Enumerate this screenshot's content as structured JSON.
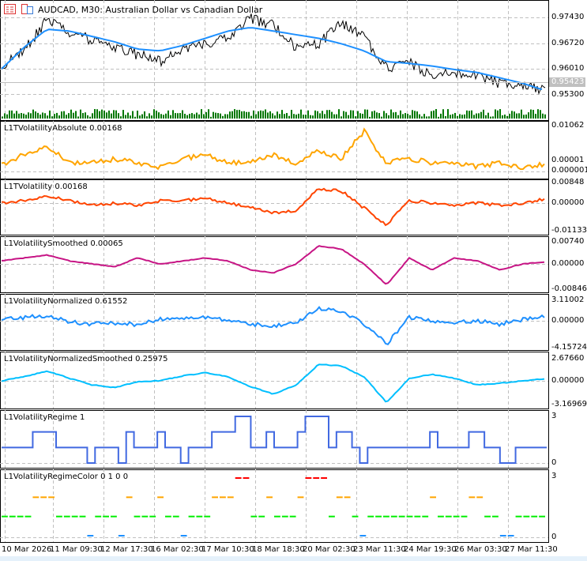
{
  "header": {
    "title": "AUDCAD, M30:  Australian Dollar vs Canadian Dollar",
    "icons": [
      "chart-list-icon",
      "templates-icon"
    ]
  },
  "colors": {
    "price": "#000000",
    "ma": "#1e90ff",
    "volume": "#007700",
    "abs": "#ffa500",
    "vol": "#ff4500",
    "smoothed": "#c71585",
    "normalized": "#1e90ff",
    "normSmoothed": "#00bfff",
    "regime": "#4169e1",
    "regimeColors": [
      "#1e90ff",
      "#00ee00",
      "#ffa500",
      "#ff0000"
    ],
    "grid": "#c0c0c0",
    "bidLabel": "#c0c0c0"
  },
  "main": {
    "axis": [
      "0.97430",
      "0.96720",
      "0.96010",
      "0.95300"
    ],
    "bid": "0.95423"
  },
  "panels": [
    {
      "label": "L1TVolatilityAbsolute 0.00168",
      "axis": [
        "0.01062",
        "0.00001",
        "0.000001"
      ]
    },
    {
      "label": "L1TVolatility 0.00168",
      "axis": [
        "0.00848",
        "0.00000",
        "-0.01133"
      ]
    },
    {
      "label": "L1VolatilitySmoothed 0.00065",
      "axis": [
        "0.00740",
        "0.00000",
        "-0.00846"
      ]
    },
    {
      "label": "L1VolatilityNormalized 0.61552",
      "axis": [
        "3.11002",
        "0.00000",
        "-4.15724"
      ]
    },
    {
      "label": "L1VolatilityNormalizedSmoothed 0.25975",
      "axis": [
        "2.67660",
        "0.00000",
        "-3.16969"
      ]
    },
    {
      "label": "L1VolatilityRegime 1",
      "axis": [
        "3",
        "0"
      ]
    },
    {
      "label": "L1VolatilityRegimeColor 0 1 0 0",
      "axis": [
        "3",
        "0"
      ]
    }
  ],
  "xaxis": [
    "10 Mar 2026",
    "11 Mar 09:30",
    "12 Mar 17:30",
    "16 Mar 02:30",
    "17 Mar 10:30",
    "18 Mar 18:30",
    "20 Mar 02:30",
    "23 Mar 11:30",
    "24 Mar 19:30",
    "26 Mar 03:30",
    "27 Mar 11:30"
  ],
  "chart_data": {
    "type": "line",
    "price": [
      0.9605,
      0.965,
      0.9735,
      0.97,
      0.968,
      0.966,
      0.964,
      0.962,
      0.965,
      0.967,
      0.969,
      0.974,
      0.972,
      0.966,
      0.967,
      0.973,
      0.969,
      0.96,
      0.962,
      0.958,
      0.959,
      0.958,
      0.956,
      0.955,
      0.9542
    ],
    "ma": [
      0.96,
      0.966,
      0.971,
      0.9705,
      0.969,
      0.9675,
      0.9655,
      0.965,
      0.9665,
      0.9685,
      0.9705,
      0.9715,
      0.9705,
      0.9695,
      0.9685,
      0.967,
      0.965,
      0.962,
      0.9615,
      0.9608,
      0.9598,
      0.959,
      0.9575,
      0.956,
      0.954
    ],
    "abs": [
      0.0015,
      0.004,
      0.006,
      0.002,
      0.002,
      0.003,
      0.002,
      0.001,
      0.003,
      0.004,
      0.002,
      0.002,
      0.004,
      0.002,
      0.005,
      0.003,
      0.0095,
      0.002,
      0.003,
      0.002,
      0.002,
      0.001,
      0.002,
      0.001,
      0.00168
    ],
    "vol": [
      0,
      0.001,
      0.003,
      0.001,
      -0.001,
      0,
      -0.001,
      0.001,
      0.001,
      0.002,
      0,
      -0.002,
      -0.004,
      -0.003,
      0.006,
      0.005,
      -0.002,
      -0.009,
      0.001,
      0,
      -0.001,
      0,
      -0.001,
      0,
      0.00168
    ],
    "smoothed": [
      0.001,
      0.002,
      0.003,
      0.001,
      0,
      -0.001,
      0.002,
      0,
      0.001,
      0.002,
      0.001,
      -0.002,
      -0.003,
      0,
      0.006,
      0.005,
      0,
      -0.007,
      0.002,
      -0.002,
      0.002,
      0.001,
      -0.002,
      0,
      0.00065
    ],
    "normalized": [
      0.2,
      0.5,
      0.8,
      -0.2,
      -0.5,
      -0.3,
      -0.6,
      0.2,
      0.3,
      0.6,
      0,
      -0.5,
      -0.8,
      -0.3,
      1.9,
      1.4,
      -0.5,
      -3.5,
      0.5,
      0,
      -0.2,
      0,
      -0.5,
      0.2,
      0.61552
    ],
    "normSmoothed": [
      0,
      0.5,
      1.2,
      0.3,
      -0.5,
      -0.8,
      -0.1,
      0,
      0.6,
      1,
      0.5,
      -0.7,
      -1.6,
      -0.5,
      2,
      1.8,
      0.5,
      -2.6,
      0.3,
      0.8,
      0.3,
      -0.5,
      -0.3,
      0,
      0.25975
    ],
    "regime": [
      1,
      1,
      1,
      1,
      2,
      2,
      2,
      1,
      1,
      1,
      1,
      0,
      1,
      1,
      1,
      0,
      2,
      1,
      1,
      1,
      2,
      1,
      1,
      0,
      1,
      1,
      1,
      2,
      2,
      2,
      3,
      3,
      1,
      1,
      2,
      1,
      1,
      1,
      2,
      3,
      3,
      3,
      1,
      2,
      2,
      1,
      0,
      1,
      1,
      1,
      1,
      1,
      1,
      1,
      1,
      2,
      1,
      1,
      1,
      1,
      2,
      2,
      1,
      1,
      0,
      0,
      1,
      1,
      1,
      1
    ]
  }
}
